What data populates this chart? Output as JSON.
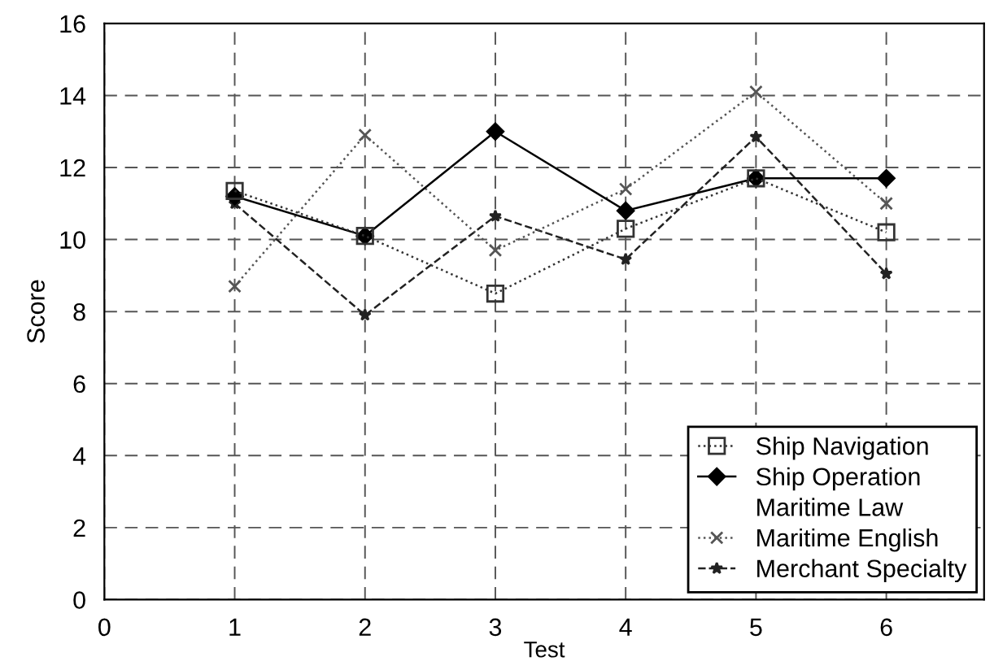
{
  "chart_data": {
    "type": "line",
    "xlabel": "Test",
    "ylabel": "Score",
    "x": [
      1,
      2,
      3,
      4,
      5,
      6
    ],
    "xlim": [
      0,
      6.75
    ],
    "xticks": [
      0,
      1,
      2,
      3,
      4,
      5,
      6
    ],
    "ylim": [
      0,
      16
    ],
    "yticks": [
      0,
      2,
      4,
      6,
      8,
      10,
      12,
      14,
      16
    ],
    "grid": true,
    "legend": "bottom right",
    "series": [
      {
        "name": "Ship Navigation",
        "color": "#333333",
        "marker": "square",
        "line_style": "dotted",
        "values": [
          11.35,
          10.1,
          8.5,
          10.3,
          11.7,
          10.2
        ]
      },
      {
        "name": "Ship Operation",
        "color": "#000000",
        "marker": "diamond",
        "line_style": "solid",
        "values": [
          11.2,
          10.1,
          13.0,
          10.8,
          11.7,
          11.7
        ]
      },
      {
        "name": "Maritime Law",
        "marker": "none",
        "line_style": "solid",
        "values": [
          null,
          null,
          null,
          null,
          null,
          null
        ]
      },
      {
        "name": "Maritime English",
        "color": "#555555",
        "marker": "cross",
        "line_style": "dotted",
        "values": [
          8.7,
          12.9,
          9.7,
          11.4,
          14.1,
          11.0
        ]
      },
      {
        "name": "Merchant Specialty",
        "color": "#222222",
        "marker": "star",
        "line_style": "dashed",
        "values": [
          11.0,
          7.9,
          10.65,
          9.45,
          12.85,
          9.05
        ]
      }
    ]
  }
}
